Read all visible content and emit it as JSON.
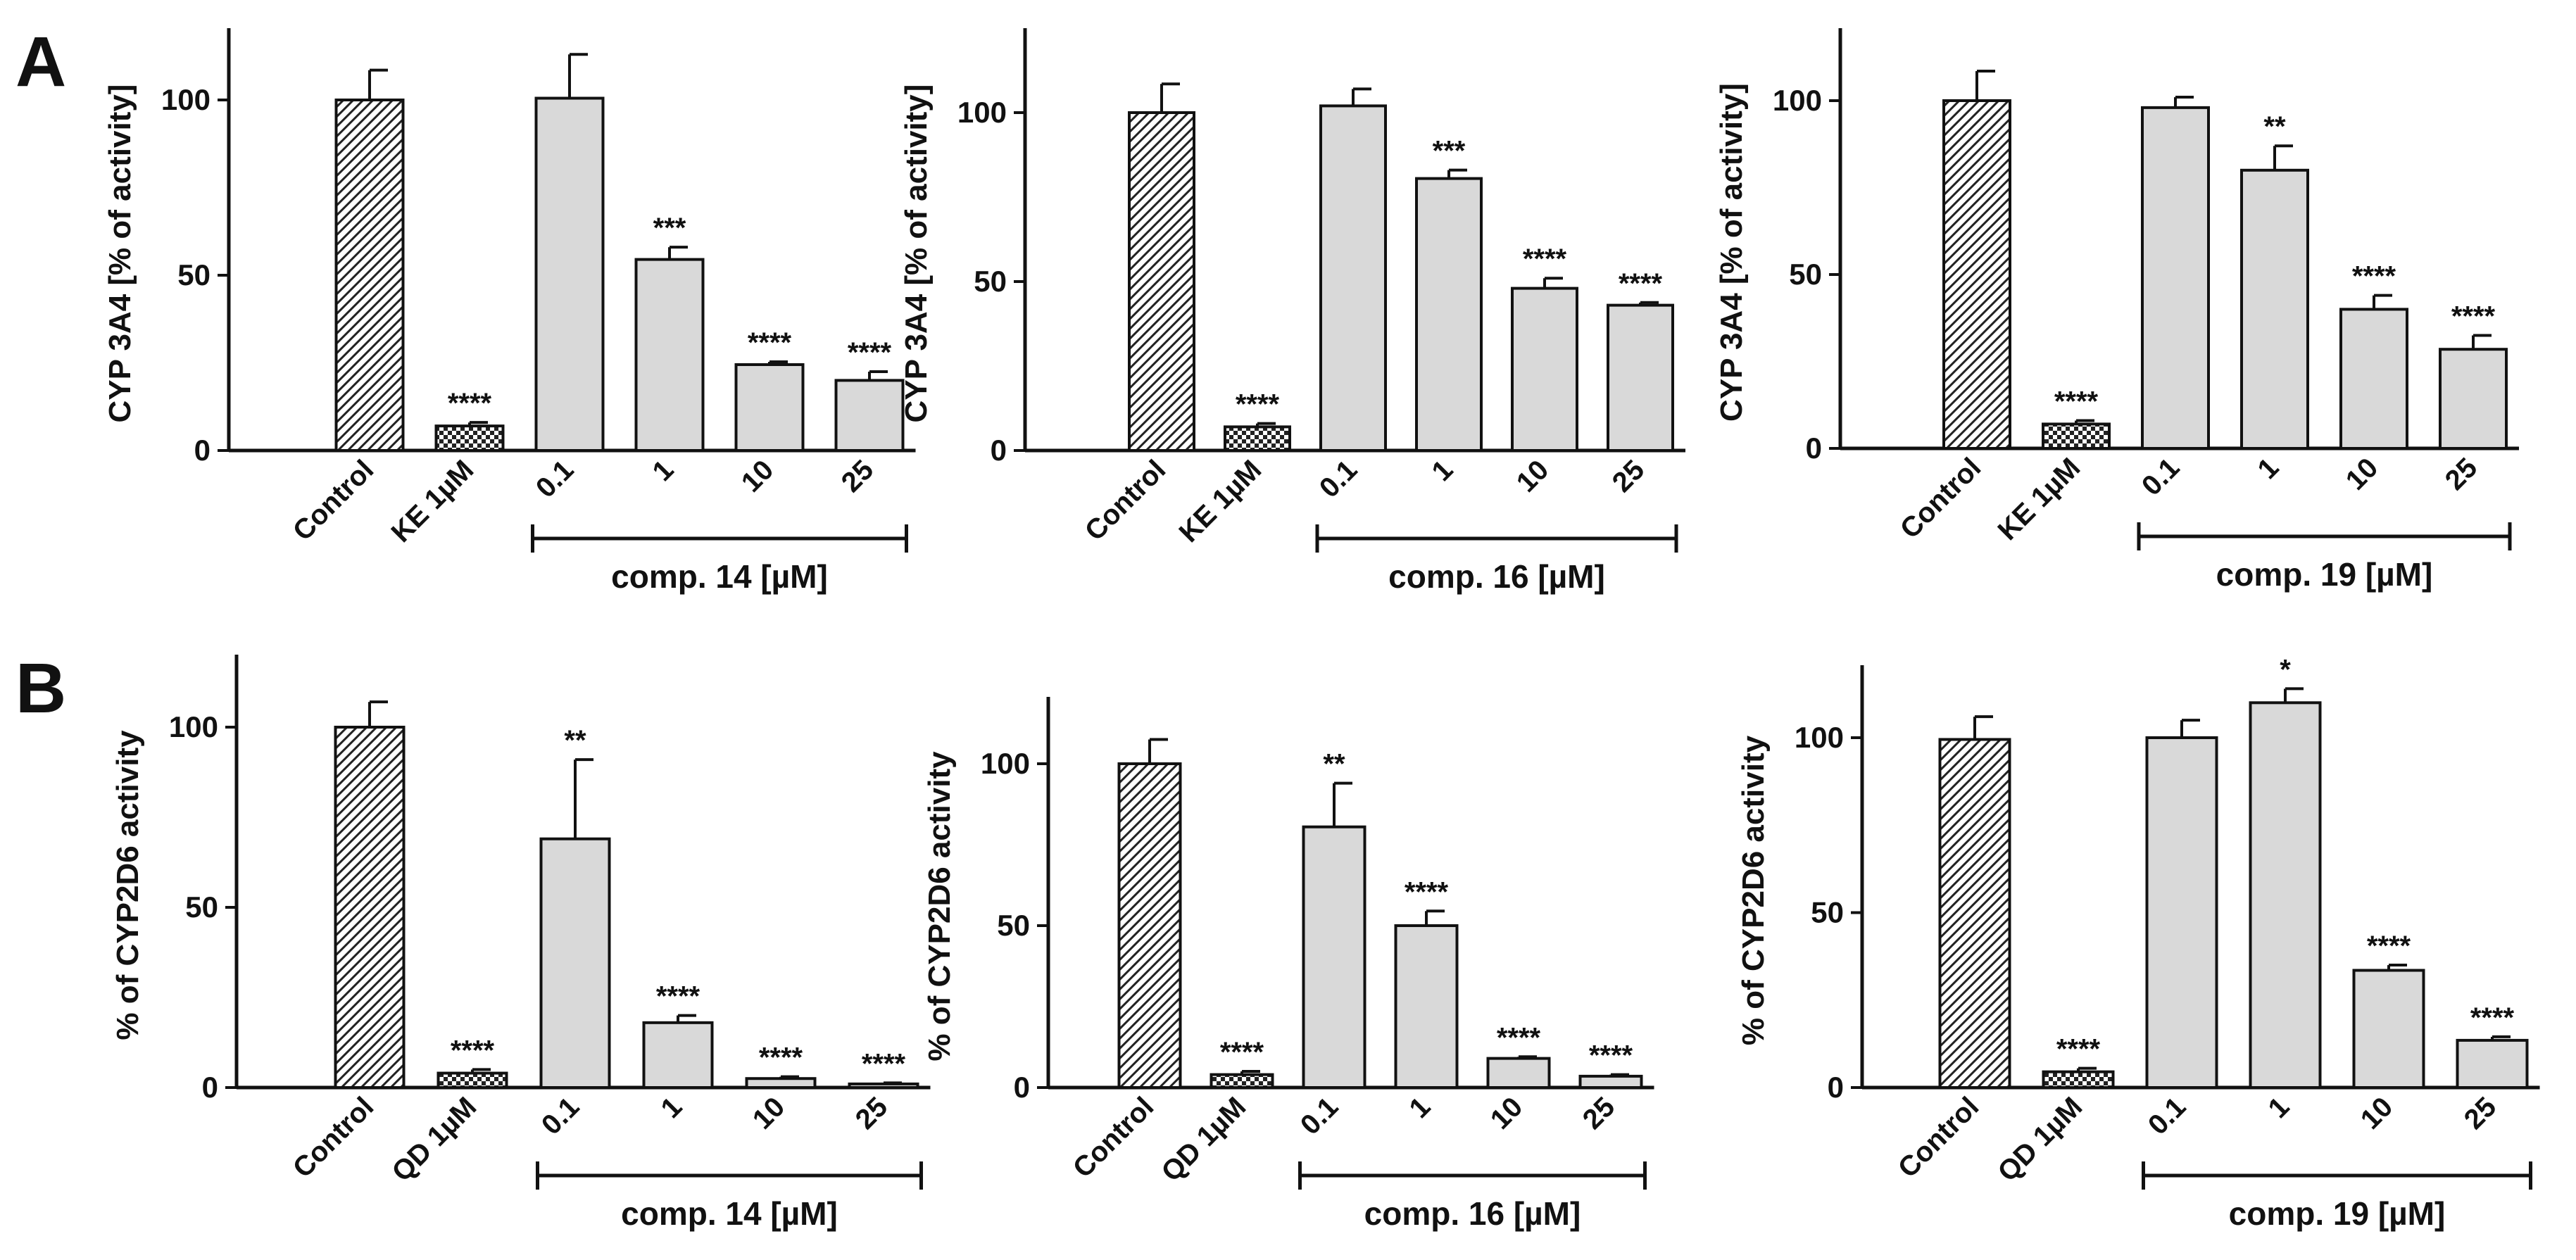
{
  "panel_labels": [
    "A",
    "B"
  ],
  "chart_data": [
    {
      "type": "bar",
      "row": 0,
      "ylabel": "CYP 3A4 [% of activity]",
      "ylim": [
        0,
        120
      ],
      "yticks": [
        0,
        50,
        100
      ],
      "categories": [
        "Control",
        "KE 1µM",
        "0.1",
        "1",
        "10",
        "25"
      ],
      "values": [
        100,
        7,
        100.5,
        54.5,
        24.5,
        20
      ],
      "errors": [
        8.5,
        1,
        12.5,
        3.5,
        0.8,
        2.5
      ],
      "significance": [
        "",
        "****",
        "",
        "***",
        "****",
        "****"
      ],
      "patterns": [
        "hatch",
        "check",
        "plain",
        "plain",
        "plain",
        "plain"
      ],
      "bracket_label": "comp. 14 [µM]"
    },
    {
      "type": "bar",
      "row": 0,
      "ylabel": "CYP 3A4 [% of activity]",
      "ylim": [
        0,
        120
      ],
      "yticks": [
        0,
        50,
        100
      ],
      "categories": [
        "Control",
        "KE 1µM",
        "0.1",
        "1",
        "10",
        "25"
      ],
      "values": [
        100,
        7,
        102,
        80.5,
        48,
        43
      ],
      "errors": [
        8.5,
        1,
        5,
        2.5,
        3,
        0.8
      ],
      "significance": [
        "",
        "****",
        "",
        "***",
        "****",
        "****"
      ],
      "patterns": [
        "hatch",
        "check",
        "plain",
        "plain",
        "plain",
        "plain"
      ],
      "bracket_label": "comp. 16 [µM]"
    },
    {
      "type": "bar",
      "row": 0,
      "ylabel": "CYP 3A4 [% of activity]",
      "ylim": [
        0,
        120
      ],
      "yticks": [
        0,
        50,
        100
      ],
      "categories": [
        "Control",
        "KE 1µM",
        "0.1",
        "1",
        "10",
        "25"
      ],
      "values": [
        100,
        7,
        98,
        80,
        40,
        28.5
      ],
      "errors": [
        8.5,
        1,
        3,
        7,
        4,
        4
      ],
      "significance": [
        "",
        "****",
        "",
        "**",
        "****",
        "****"
      ],
      "patterns": [
        "hatch",
        "check",
        "plain",
        "plain",
        "plain",
        "plain"
      ],
      "bracket_label": "comp. 19 [µM]"
    },
    {
      "type": "bar",
      "row": 1,
      "ylabel": "% of CYP2D6 activity",
      "ylim": [
        0,
        120
      ],
      "yticks": [
        0,
        50,
        100
      ],
      "categories": [
        "Control",
        "QD 1µM",
        "0.1",
        "1",
        "10",
        "25"
      ],
      "values": [
        100,
        4,
        69,
        18,
        2.5,
        1
      ],
      "errors": [
        7,
        1,
        22,
        2,
        0.5,
        0.3
      ],
      "significance": [
        "",
        "****",
        "**",
        "****",
        "****",
        "****"
      ],
      "patterns": [
        "hatch",
        "check",
        "plain",
        "plain",
        "plain",
        "plain"
      ],
      "bracket_label": "comp. 14 [µM]"
    },
    {
      "type": "bar",
      "row": 1,
      "ylabel": "% of CYP2D6 activity",
      "ylim": [
        0,
        120
      ],
      "yticks": [
        0,
        50,
        100
      ],
      "categories": [
        "Control",
        "QD 1µM",
        "0.1",
        "1",
        "10",
        "25"
      ],
      "values": [
        100,
        4,
        80.5,
        50,
        9,
        3.5
      ],
      "errors": [
        7.5,
        1,
        13.5,
        4.5,
        0.5,
        0.5
      ],
      "significance": [
        "",
        "****",
        "**",
        "****",
        "****",
        "****"
      ],
      "patterns": [
        "hatch",
        "check",
        "plain",
        "plain",
        "plain",
        "plain"
      ],
      "bracket_label": "comp. 16 [µM]"
    },
    {
      "type": "bar",
      "row": 1,
      "ylabel": "% of CYP2D6 activity",
      "ylim": [
        0,
        120
      ],
      "yticks": [
        0,
        50,
        100
      ],
      "categories": [
        "Control",
        "QD 1µM",
        "0.1",
        "1",
        "10",
        "25"
      ],
      "values": [
        99.5,
        4.5,
        100,
        110,
        33.5,
        13.5
      ],
      "errors": [
        6.5,
        1,
        5,
        4,
        1.5,
        1
      ],
      "significance": [
        "",
        "****",
        "",
        "*",
        "****",
        "****"
      ],
      "patterns": [
        "hatch",
        "check",
        "plain",
        "plain",
        "plain",
        "plain"
      ],
      "bracket_label": "comp. 19 [µM]"
    }
  ]
}
